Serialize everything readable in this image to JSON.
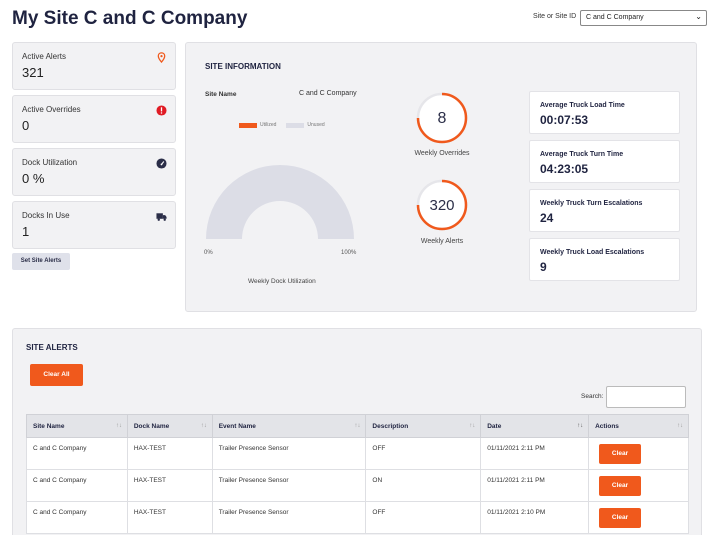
{
  "header": {
    "title": "My Site C and C Company",
    "site_select_label": "Site or Site ID",
    "site_select_value": "C and C Company"
  },
  "stats": [
    {
      "label": "Active Alerts",
      "value": "321",
      "icon": "location-pin-icon",
      "icon_color": "#f0591c"
    },
    {
      "label": "Active Overrides",
      "value": "0",
      "icon": "alert-circle-icon",
      "icon_color": "#e01b24"
    },
    {
      "label": "Dock Utilization",
      "value": "0 %",
      "icon": "gauge-icon",
      "icon_color": "#2b2e48"
    },
    {
      "label": "Docks In Use",
      "value": "1",
      "icon": "truck-icon",
      "icon_color": "#2b2e48"
    }
  ],
  "set_alerts_button": "Set Site Alerts",
  "info": {
    "title": "SITE INFORMATION",
    "site_name_label": "Site Name",
    "site_name_value": "C and C Company",
    "legend_utilized": "Utilized",
    "legend_unused": "Unused",
    "gauge_min": "0%",
    "gauge_max": "100%",
    "gauge_caption": "Weekly Dock Utilization",
    "utilization_fraction": 0,
    "overrides_value": "8",
    "overrides_caption": "Weekly Overrides",
    "alerts_value": "320",
    "alerts_caption": "Weekly Alerts",
    "metrics": [
      {
        "label": "Average Truck Load Time",
        "value": "00:07:53"
      },
      {
        "label": "Average Truck Turn Time",
        "value": "04:23:05"
      },
      {
        "label": "Weekly Truck Turn Escalations",
        "value": "24"
      },
      {
        "label": "Weekly Truck Load Escalations",
        "value": "9"
      }
    ]
  },
  "alerts": {
    "title": "SITE ALERTS",
    "clear_all": "Clear All",
    "search_label": "Search:",
    "columns": [
      "Site Name",
      "Dock Name",
      "Event Name",
      "Description",
      "Date",
      "Actions"
    ],
    "rows": [
      {
        "site": "C and C Company",
        "dock": "HAX-TEST",
        "event": "Trailer Presence Sensor",
        "desc": "OFF",
        "date": "01/11/2021 2:11 PM",
        "action": "Clear"
      },
      {
        "site": "C and C Company",
        "dock": "HAX-TEST",
        "event": "Trailer Presence Sensor",
        "desc": "ON",
        "date": "01/11/2021 2:11 PM",
        "action": "Clear"
      },
      {
        "site": "C and C Company",
        "dock": "HAX-TEST",
        "event": "Trailer Presence Sensor",
        "desc": "OFF",
        "date": "01/11/2021 2:10 PM",
        "action": "Clear"
      }
    ]
  },
  "colors": {
    "accent": "#f0591c",
    "unused": "#dcdde6",
    "ring_track": "#e6e6ea"
  }
}
